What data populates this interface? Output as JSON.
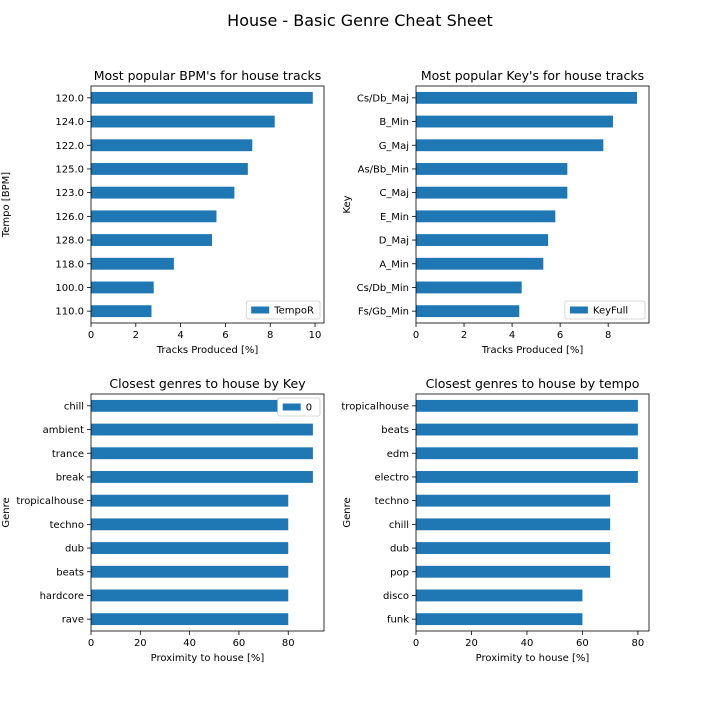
{
  "figure_title": "House - Basic Genre Cheat Sheet",
  "bar_color": "#1f77b4",
  "chart_data": [
    {
      "type": "bar",
      "orientation": "horizontal",
      "title": "Most popular BPM's for house tracks",
      "xlabel": "Tracks Produced [%]",
      "ylabel": "Tempo [BPM]",
      "legend": "TempoR",
      "legend_position": "lower-right",
      "categories": [
        "120.0",
        "124.0",
        "122.0",
        "125.0",
        "123.0",
        "126.0",
        "128.0",
        "118.0",
        "100.0",
        "110.0"
      ],
      "values": [
        9.9,
        8.2,
        7.2,
        7.0,
        6.4,
        5.6,
        5.4,
        3.7,
        2.8,
        2.7
      ],
      "xlim": [
        0,
        10.4
      ],
      "xticks": [
        0,
        2,
        4,
        6,
        8,
        10
      ]
    },
    {
      "type": "bar",
      "orientation": "horizontal",
      "title": "Most popular Key's for house tracks",
      "xlabel": "Tracks Produced [%]",
      "ylabel": "Key",
      "legend": "KeyFull",
      "legend_position": "lower-right",
      "categories": [
        "Cs/Db_Maj",
        "B_Min",
        "G_Maj",
        "As/Bb_Min",
        "C_Maj",
        "E_Min",
        "D_Maj",
        "A_Min",
        "Cs/Db_Min",
        "Fs/Gb_Min"
      ],
      "values": [
        9.2,
        8.2,
        7.8,
        6.3,
        6.3,
        5.8,
        5.5,
        5.3,
        4.4,
        4.3
      ],
      "xlim": [
        0,
        9.7
      ],
      "xticks": [
        0,
        2,
        4,
        6,
        8
      ]
    },
    {
      "type": "bar",
      "orientation": "horizontal",
      "title": "Closest genres to house by Key",
      "xlabel": "Proximity to house [%]",
      "ylabel": "Genre",
      "legend": "0",
      "legend_position": "upper-right",
      "categories": [
        "chill",
        "ambient",
        "trance",
        "break",
        "tropicalhouse",
        "techno",
        "dub",
        "beats",
        "hardcore",
        "rave"
      ],
      "values": [
        90,
        90,
        90,
        90,
        80,
        80,
        80,
        80,
        80,
        80
      ],
      "xlim": [
        0,
        94.5
      ],
      "xticks": [
        0,
        20,
        40,
        60,
        80
      ]
    },
    {
      "type": "bar",
      "orientation": "horizontal",
      "title": "Closest genres to house by tempo",
      "xlabel": "Proximity to house [%]",
      "ylabel": "Genre",
      "legend": "",
      "categories": [
        "tropicalhouse",
        "beats",
        "edm",
        "electro",
        "techno",
        "chill",
        "dub",
        "pop",
        "disco",
        "funk"
      ],
      "values": [
        80,
        80,
        80,
        80,
        70,
        70,
        70,
        70,
        60,
        60
      ],
      "xlim": [
        0,
        84
      ],
      "xticks": [
        0,
        20,
        40,
        60,
        80
      ]
    }
  ]
}
